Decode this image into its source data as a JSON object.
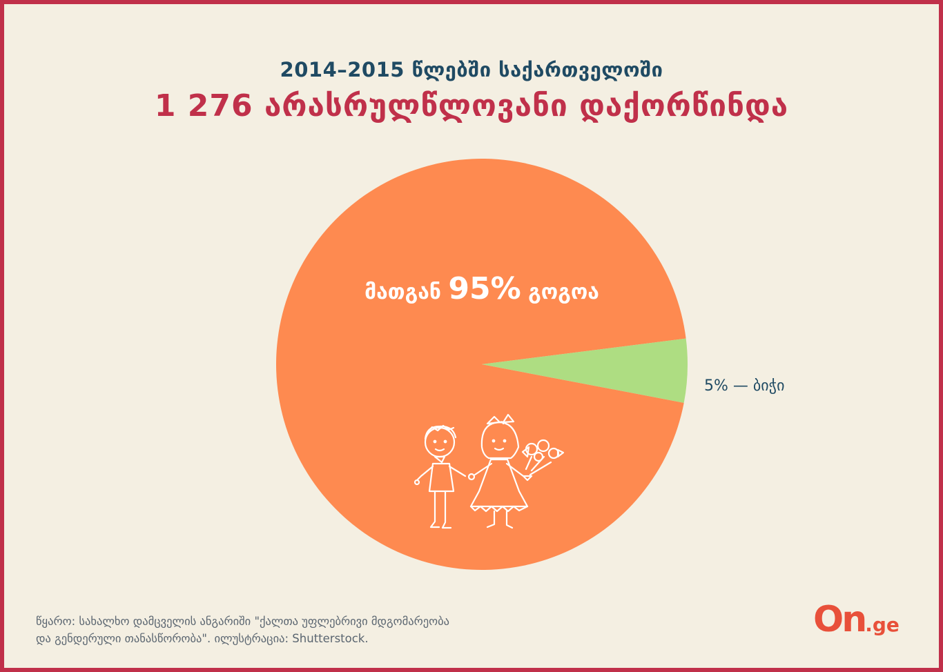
{
  "header": {
    "line1": "2014–2015 წლებში საქართველოში",
    "line2": "1 276 არასრულწლოვანი დაქორწინდა"
  },
  "chart_data": {
    "type": "pie",
    "slices": [
      {
        "label_prefix": "მათგან ",
        "value_text": "95%",
        "label_suffix": " გოგოა",
        "value": 95,
        "color": "#fe8a50"
      },
      {
        "label": "5% — ბიჭი",
        "value": 5,
        "color": "#aedd82"
      }
    ]
  },
  "footer": {
    "line1": "წყარო: სახალხო დამცველის ანგარიში \"ქალთა უფლებრივი მდგომარეობა",
    "line2": "და გენდერული თანასწორობა\". ილუსტრაცია: Shutterstock."
  },
  "logo": {
    "main": "On",
    "suffix": ".ge"
  },
  "colors": {
    "border": "#c0304a",
    "background": "#f4efe2",
    "title_dark": "#1f4a63",
    "title_accent": "#c0304a",
    "logo": "#e8503a"
  }
}
